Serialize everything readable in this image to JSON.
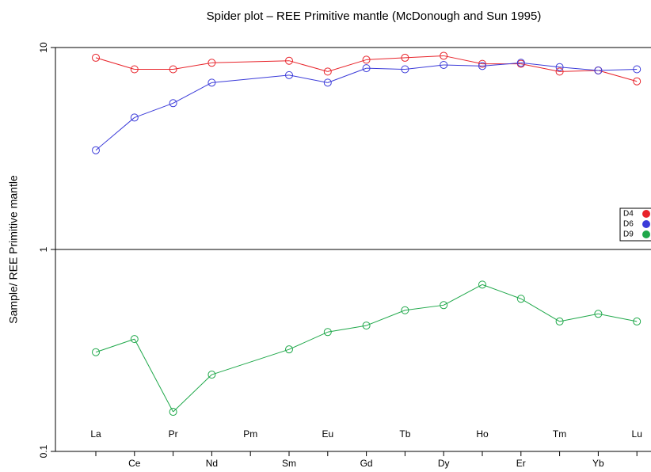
{
  "chart_data": {
    "type": "line",
    "title": "Spider plot –  REE Primitive mantle (McDonough  and  Sun 1995)",
    "y_label": "Sample/ REE Primitive mantle",
    "categories": [
      "La",
      "Ce",
      "Pr",
      "Nd",
      "Pm",
      "Sm",
      "Eu",
      "Gd",
      "Tb",
      "Dy",
      "Ho",
      "Er",
      "Tm",
      "Yb",
      "Lu"
    ],
    "series": [
      {
        "name": "D4",
        "color": "#e8232a",
        "values": [
          8.9,
          7.8,
          7.8,
          8.4,
          null,
          8.6,
          7.6,
          8.7,
          8.9,
          9.1,
          8.3,
          8.3,
          7.6,
          7.7,
          6.8
        ]
      },
      {
        "name": "D6",
        "color": "#3b3bd9",
        "values": [
          3.1,
          4.5,
          5.3,
          6.7,
          null,
          7.3,
          6.7,
          7.9,
          7.8,
          8.2,
          8.1,
          8.4,
          8.0,
          7.7,
          7.8
        ]
      },
      {
        "name": "D9",
        "color": "#1fa84a",
        "values": [
          0.31,
          0.36,
          0.157,
          0.24,
          null,
          0.32,
          0.39,
          0.42,
          0.5,
          0.53,
          0.67,
          0.57,
          0.44,
          0.48,
          0.44
        ]
      }
    ],
    "ylim": [
      0.1,
      10
    ],
    "yticks": [
      0.1,
      1,
      10
    ],
    "log_y": true,
    "hline": 1,
    "legend": "right"
  }
}
